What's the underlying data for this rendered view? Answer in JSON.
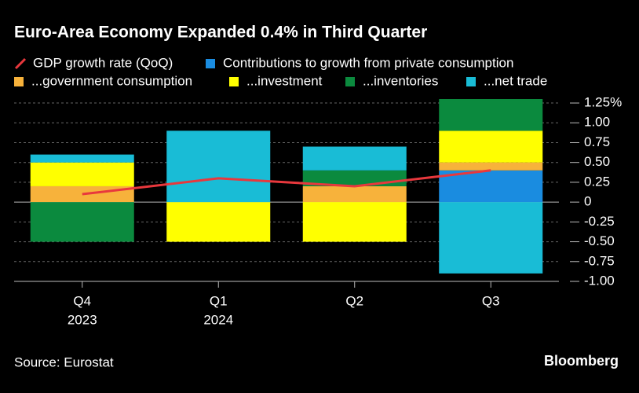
{
  "chart_data": {
    "type": "stacked-bar-line",
    "title": "Euro-Area Economy Expanded 0.4% in Third Quarter",
    "categories": [
      "Q4",
      "Q1",
      "Q2",
      "Q3"
    ],
    "category_years": [
      "2023",
      "2024",
      null,
      null
    ],
    "line_series": {
      "name": "GDP growth rate (QoQ)",
      "color": "#e8383d",
      "values": [
        0.1,
        0.3,
        0.2,
        0.4
      ]
    },
    "series": [
      {
        "name": "Contributions to growth from private consumption",
        "color": "#1a8ce0",
        "values": [
          0,
          0,
          0,
          0.4
        ]
      },
      {
        "name": "...government consumption",
        "color": "#f7b23b",
        "values": [
          0.2,
          0,
          0.2,
          0.1
        ]
      },
      {
        "name": "...investment",
        "color": "#ffff00",
        "values": [
          0.3,
          -0.5,
          -0.5,
          0.4
        ]
      },
      {
        "name": "...inventories",
        "color": "#0b8a3e",
        "values": [
          -0.5,
          0,
          0.2,
          0.4
        ]
      },
      {
        "name": "...net trade",
        "color": "#19bcd6",
        "values": [
          0.1,
          0.9,
          0.3,
          -0.9
        ]
      }
    ],
    "ylim": [
      -1.0,
      1.3
    ],
    "yticks": [
      {
        "value": 1.25,
        "label": "1.25%"
      },
      {
        "value": 1.0,
        "label": "1.00"
      },
      0.75,
      {
        "value": 0.5,
        "label": "0.50"
      },
      0.25,
      0,
      -0.25,
      {
        "value": -0.5,
        "label": "-0.50"
      },
      -0.75,
      {
        "value": -1.0,
        "label": "-1.00"
      }
    ],
    "grid": true,
    "source": "Source: Eurostat",
    "brand": "Bloomberg"
  }
}
